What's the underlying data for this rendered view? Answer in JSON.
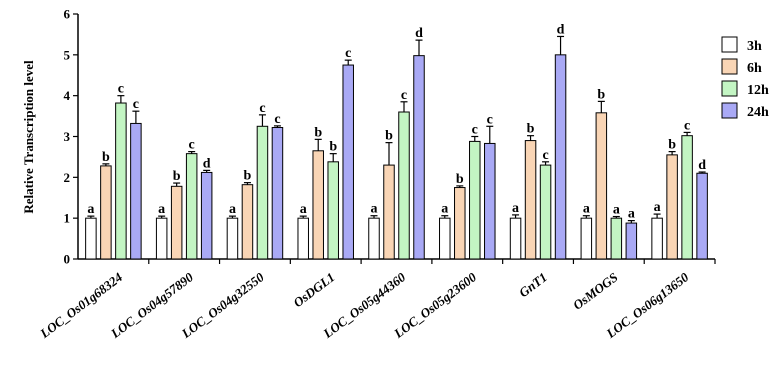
{
  "chart_data": {
    "type": "bar",
    "ylabel": "Relative Transcription level",
    "xlabel": "",
    "title": "",
    "ylim": [
      0,
      6
    ],
    "yticks": [
      0,
      1,
      2,
      3,
      4,
      5,
      6
    ],
    "grid": false,
    "legend_position": "right",
    "categories": [
      "LOC_Os01g68324",
      "LOC_Os04g57890",
      "LOC_Os04g32550",
      "OsDGL1",
      "LOC_Os05g44360",
      "LOC_Os05g23600",
      "GnT1",
      "OsMOGS",
      "LOC_Os06g13650"
    ],
    "series": [
      {
        "name": "3h",
        "color": "#ffffff",
        "values": [
          1.0,
          1.0,
          1.0,
          1.0,
          1.0,
          1.0,
          1.0,
          1.0,
          1.0
        ],
        "errors": [
          0.05,
          0.05,
          0.05,
          0.05,
          0.06,
          0.06,
          0.08,
          0.06,
          0.1
        ],
        "sig": [
          "a",
          "a",
          "a",
          "a",
          "a",
          "a",
          "a",
          "a",
          "a"
        ]
      },
      {
        "name": "6h",
        "color": "#f9d5b5",
        "values": [
          2.28,
          1.78,
          1.82,
          2.65,
          2.3,
          1.75,
          2.9,
          3.58,
          2.55
        ],
        "errors": [
          0.05,
          0.08,
          0.05,
          0.28,
          0.55,
          0.04,
          0.12,
          0.28,
          0.08
        ],
        "sig": [
          "b",
          "b",
          "b",
          "b",
          "b",
          "b",
          "b",
          "b",
          "b"
        ]
      },
      {
        "name": "12h",
        "color": "#c3f5c3",
        "values": [
          3.82,
          2.58,
          3.25,
          2.38,
          3.6,
          2.88,
          2.3,
          1.0,
          3.02
        ],
        "errors": [
          0.18,
          0.05,
          0.28,
          0.2,
          0.25,
          0.12,
          0.08,
          0.04,
          0.08
        ],
        "sig": [
          "c",
          "c",
          "c",
          "b",
          "c",
          "c",
          "c",
          "a",
          "c"
        ]
      },
      {
        "name": "24h",
        "color": "#a9a9f5",
        "values": [
          3.32,
          2.12,
          3.22,
          4.75,
          4.98,
          2.83,
          5.0,
          0.88,
          2.1
        ],
        "errors": [
          0.3,
          0.05,
          0.04,
          0.12,
          0.38,
          0.42,
          0.45,
          0.06,
          0.03
        ],
        "sig": [
          "c",
          "d",
          "c",
          "c",
          "d",
          "c",
          "d",
          "a",
          "d"
        ]
      }
    ]
  }
}
